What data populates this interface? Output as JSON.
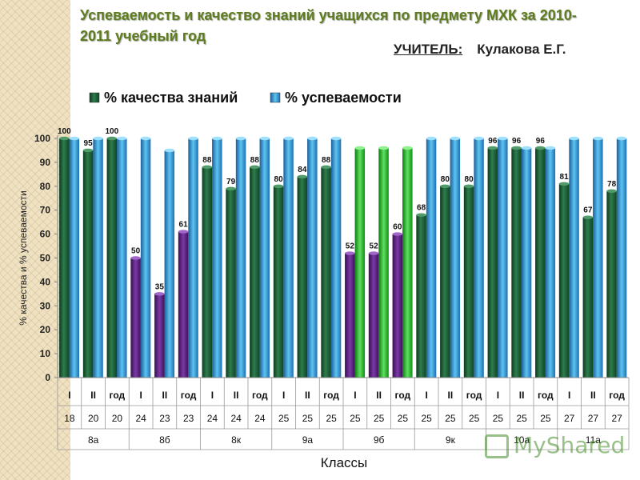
{
  "header": {
    "title": "Успеваемость и качество знаний учащихся по предмету МХК за 2010-2011 учебный год",
    "teacher_label": "УЧИТЕЛЬ:",
    "teacher_name": "Кулакова Е.Г."
  },
  "colors": {
    "quality": "#1f6b3c",
    "success": "#2f9fdf",
    "purple": "#5b1f7f",
    "green_bar": "#33b533"
  },
  "watermark": {
    "text": "MyShared",
    "icon": "slide-icon"
  },
  "chart_data": {
    "type": "bar",
    "xlabel": "Классы",
    "ylabel": "% качества и % успеваемости",
    "ylim": [
      0,
      100
    ],
    "yticks": [
      0,
      10,
      20,
      30,
      40,
      50,
      60,
      70,
      80,
      90,
      100
    ],
    "legend_position": "top",
    "grid": false,
    "periods": [
      "I",
      "II",
      "год",
      "I",
      "II",
      "год",
      "I",
      "II",
      "год",
      "I",
      "II",
      "год",
      "I",
      "II",
      "год",
      "I",
      "II",
      "год",
      "I",
      "II",
      "год",
      "I",
      "II",
      "год"
    ],
    "counts": [
      "18",
      "20",
      "20",
      "24",
      "23",
      "23",
      "24",
      "24",
      "24",
      "25",
      "25",
      "25",
      "25",
      "25",
      "25",
      "25",
      "25",
      "25",
      "25",
      "25",
      "25",
      "27",
      "27",
      "27"
    ],
    "classes": [
      "8а",
      "8б",
      "8к",
      "9а",
      "9б",
      "9к",
      "10а",
      "11а"
    ],
    "series": [
      {
        "name": "% качества знаний",
        "values": [
          100,
          95,
          100,
          50,
          35,
          61,
          88,
          79,
          88,
          80,
          84,
          88,
          52,
          52,
          60,
          68,
          80,
          80,
          96,
          96,
          96,
          81,
          67,
          78
        ]
      },
      {
        "name": "% успеваемости",
        "values": [
          100,
          100,
          100,
          100,
          95,
          100,
          100,
          100,
          100,
          100,
          100,
          100,
          96,
          96,
          96,
          100,
          100,
          100,
          100,
          96,
          96,
          100,
          100,
          100
        ]
      }
    ],
    "highlights": {
      "purple_quality": [
        3,
        4,
        5,
        12,
        13,
        14
      ],
      "green_success": [
        12,
        13,
        14
      ]
    }
  }
}
